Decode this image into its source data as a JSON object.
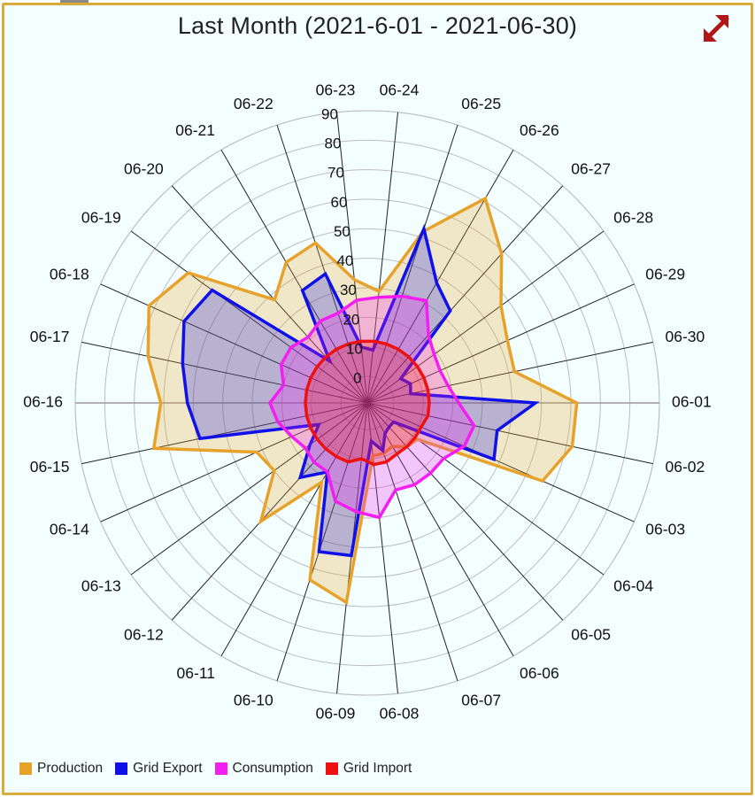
{
  "chart_data": {
    "type": "radar",
    "title": "Last Month (2021-6-01 - 2021-06-30)",
    "categories": [
      "06-01",
      "06-02",
      "06-03",
      "06-04",
      "06-05",
      "06-06",
      "06-07",
      "06-08",
      "06-09",
      "06-10",
      "06-11",
      "06-12",
      "06-13",
      "06-14",
      "06-15",
      "06-16",
      "06-17",
      "06-18",
      "06-19",
      "06-20",
      "06-21",
      "06-22",
      "06-23",
      "06-24",
      "06-25",
      "06-26",
      "06-27",
      "06-28",
      "06-29",
      "06-30"
    ],
    "radial_ticks": [
      "0",
      "10",
      "20",
      "30",
      "40",
      "50",
      "60",
      "70",
      "80",
      "90"
    ],
    "rlim": [
      0,
      90
    ],
    "series": [
      {
        "name": "Production",
        "color": "#e6a22b",
        "values": [
          62,
          62,
          56,
          12,
          11,
          8,
          9,
          9,
          59,
          54,
          22,
          45,
          30,
          32,
          65,
          61,
          67,
          72,
          66,
          38,
          46,
          48,
          33,
          29,
          52,
          71,
          59,
          47,
          43,
          42
        ]
      },
      {
        "name": "Grid Export",
        "color": "#1010e8",
        "values": [
          48,
          36,
          38,
          2,
          2,
          3,
          8,
          4,
          43,
          44,
          18,
          25,
          15,
          9,
          49,
          52,
          55,
          59,
          56,
          10,
          35,
          37,
          10,
          9,
          53,
          38,
          33,
          5,
          7,
          6
        ]
      },
      {
        "name": "Consumption",
        "color": "#f21ef2",
        "values": [
          22,
          28,
          27,
          23,
          23,
          23,
          22,
          30,
          28,
          26,
          18,
          18,
          17,
          19,
          22,
          24,
          20,
          23,
          23,
          21,
          23,
          23,
          26,
          27,
          29,
          31,
          22,
          19,
          18,
          19
        ]
      },
      {
        "name": "Grid Import",
        "color": "#ee1111",
        "values": [
          12,
          12,
          11,
          11,
          11,
          11,
          12,
          12,
          10,
          12,
          12,
          12,
          12,
          12,
          12,
          12,
          12,
          12,
          12,
          12,
          12,
          12,
          12,
          12,
          12,
          12,
          12,
          12,
          12,
          12
        ]
      }
    ],
    "legend_position": "bottom-left",
    "grid": true
  }
}
